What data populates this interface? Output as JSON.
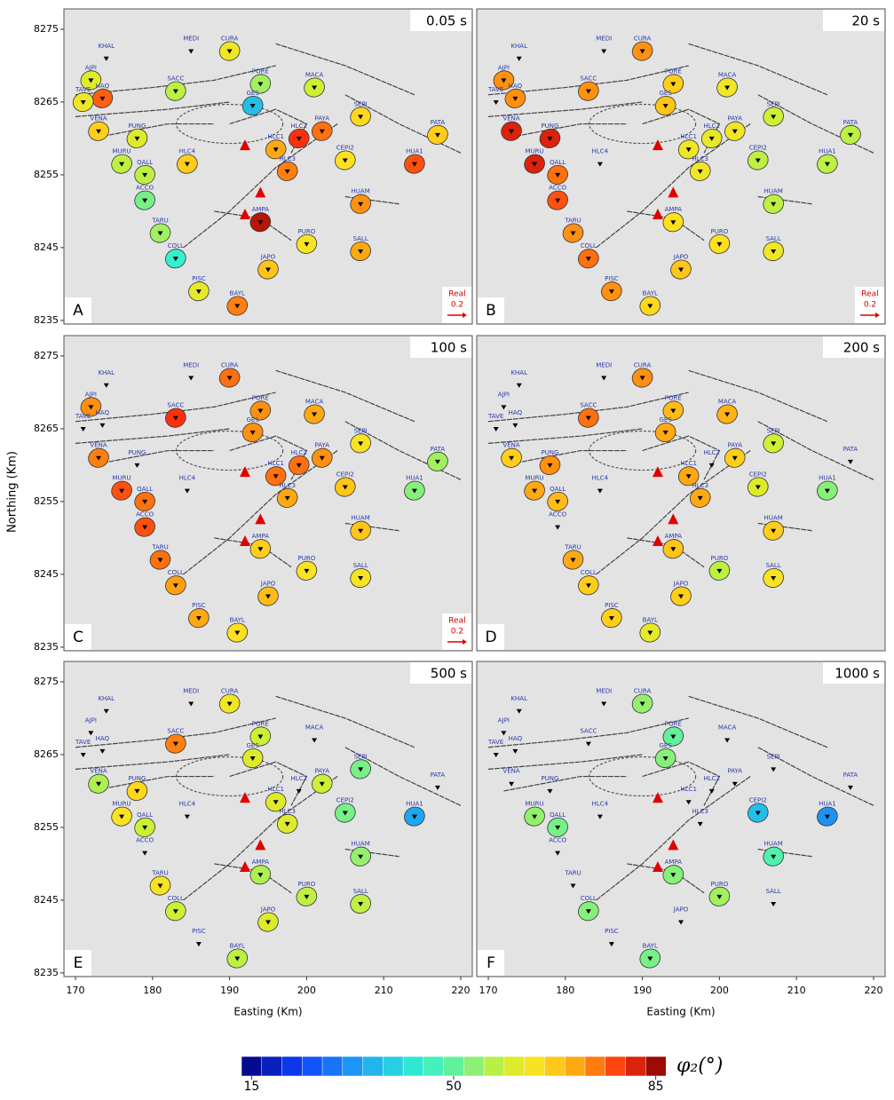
{
  "axes": {
    "xlabel": "Easting (Km)",
    "ylabel": "Northing (Km)",
    "xlim": [
      168.5,
      221.5
    ],
    "ylim": [
      8234.5,
      8277.8
    ],
    "xticks": [
      170,
      180,
      190,
      200,
      210,
      220
    ],
    "yticks": [
      8235,
      8245,
      8255,
      8265,
      8275
    ]
  },
  "stations": {
    "names": [
      "KHAL",
      "MEDI",
      "CURA",
      "AJPI",
      "HAQ",
      "TAVE",
      "SACC",
      "PORE",
      "GES",
      "MACA",
      "SEPI",
      "PATA",
      "VENA",
      "PUNG",
      "HLC1",
      "HLC2",
      "PAYA",
      "HLC3",
      "CEPI2",
      "HUA1",
      "HLC4",
      "MURU",
      "QALL",
      "ACCO",
      "HUAM",
      "AMPA",
      "TARU",
      "PURO",
      "SALL",
      "COLL",
      "JAPO",
      "PISC",
      "BAYL"
    ],
    "easting": [
      174,
      185,
      190,
      172,
      173.5,
      171,
      183,
      194,
      193,
      201,
      207,
      217,
      173,
      178,
      196,
      199,
      202,
      197.5,
      205,
      214,
      184.5,
      176,
      179,
      179,
      207,
      194,
      181,
      200,
      207,
      183,
      195,
      186,
      191
    ],
    "northing": [
      8271,
      8272,
      8272,
      8268,
      8265.5,
      8265,
      8266.5,
      8267.5,
      8264.5,
      8267,
      8263,
      8260.5,
      8261,
      8260,
      8258.5,
      8260,
      8261,
      8255.5,
      8257,
      8256.5,
      8256.5,
      8256.5,
      8255,
      8251.5,
      8251,
      8248.5,
      8247,
      8245.5,
      8244.5,
      8243.5,
      8242,
      8239,
      8237
    ]
  },
  "panels": [
    {
      "label": "A",
      "period": "0.05 s",
      "arrow_legend": true,
      "phi": [
        null,
        null,
        62,
        60,
        75,
        62,
        57,
        55,
        38,
        58,
        65,
        66,
        66,
        60,
        70,
        78,
        74,
        73,
        64,
        76,
        66,
        57,
        57,
        52,
        72,
        82,
        55,
        63,
        70,
        45,
        67,
        61,
        73
      ]
    },
    {
      "label": "B",
      "period": "20 s",
      "arrow_legend": true,
      "phi": [
        null,
        null,
        72,
        72,
        72,
        null,
        72,
        66,
        67,
        62,
        58,
        57,
        80,
        80,
        62,
        61,
        62,
        62,
        57,
        57,
        null,
        80,
        74,
        76,
        57,
        64,
        72,
        64,
        62,
        74,
        67,
        72,
        65
      ]
    },
    {
      "label": "C",
      "period": "100 s",
      "arrow_legend": true,
      "phi": [
        null,
        null,
        74,
        72,
        null,
        null,
        78,
        72,
        72,
        70,
        63,
        55,
        73,
        null,
        74,
        74,
        72,
        70,
        67,
        53,
        null,
        76,
        74,
        76,
        67,
        66,
        74,
        63,
        63,
        71,
        68,
        70,
        64
      ]
    },
    {
      "label": "D",
      "period": "200 s",
      "arrow_legend": false,
      "phi": [
        null,
        null,
        72,
        null,
        null,
        null,
        74,
        68,
        70,
        69,
        58,
        null,
        66,
        72,
        70,
        null,
        66,
        70,
        60,
        53,
        null,
        70,
        68,
        null,
        66,
        67,
        70,
        57,
        63,
        66,
        66,
        66,
        61
      ]
    },
    {
      "label": "E",
      "period": "500 s",
      "arrow_legend": false,
      "phi": [
        null,
        null,
        62,
        null,
        null,
        null,
        73,
        58,
        60,
        null,
        52,
        null,
        56,
        65,
        60,
        null,
        58,
        60,
        52,
        35,
        null,
        63,
        58,
        null,
        54,
        56,
        63,
        57,
        57,
        58,
        60,
        null,
        57
      ]
    },
    {
      "label": "F",
      "period": "1000 s",
      "arrow_legend": false,
      "phi": [
        null,
        null,
        54,
        null,
        null,
        null,
        null,
        50,
        53,
        null,
        null,
        null,
        null,
        null,
        null,
        null,
        null,
        null,
        38,
        33,
        null,
        54,
        52,
        null,
        48,
        53,
        null,
        55,
        null,
        53,
        null,
        null,
        52
      ]
    }
  ],
  "arrow_legend": {
    "label": "Real",
    "value": 0.2
  },
  "colorbar": {
    "label": "φ₂(°)",
    "lim": [
      15,
      85
    ],
    "ticks": [
      15,
      50,
      85
    ]
  }
}
